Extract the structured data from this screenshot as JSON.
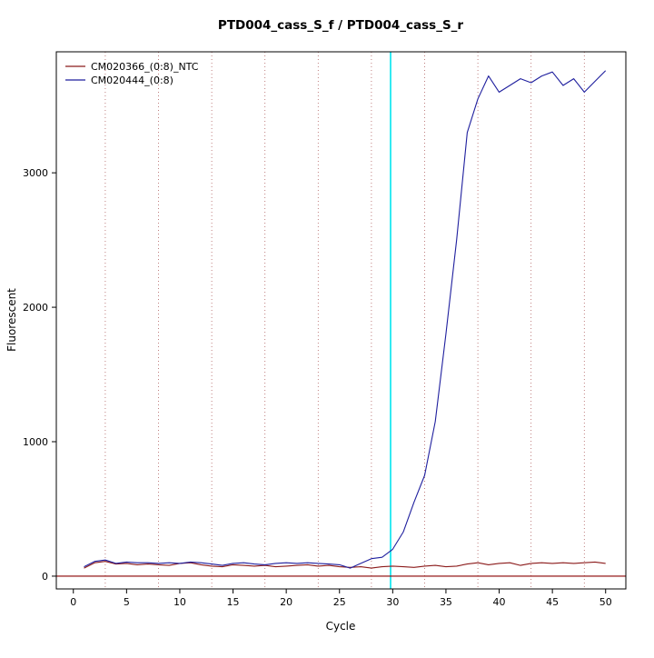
{
  "chart_data": {
    "type": "line",
    "title": "PTD004_cass_S_f / PTD004_cass_S_r",
    "xlabel": "Cycle",
    "ylabel": "Fluorescent",
    "x_ticks": [
      0,
      5,
      10,
      15,
      20,
      25,
      30,
      35,
      40,
      45,
      50
    ],
    "y_ticks": [
      0,
      1000,
      2000,
      3000
    ],
    "xlim": [
      -1.6,
      51.9
    ],
    "ylim": [
      -95,
      3900
    ],
    "grid_x_dotted": [
      3,
      8,
      13,
      18,
      23,
      28,
      33,
      38,
      43,
      48
    ],
    "threshold_line_y": 0,
    "ct_marker_x": 29.8,
    "x_start": 1,
    "series": [
      {
        "name": "CM020366_(0:8)_NTC",
        "color": "#8b1a1a",
        "values": [
          60,
          100,
          110,
          90,
          95,
          85,
          90,
          85,
          80,
          95,
          100,
          85,
          75,
          70,
          85,
          80,
          75,
          80,
          70,
          75,
          80,
          85,
          75,
          80,
          70,
          65,
          70,
          60,
          70,
          75,
          70,
          65,
          75,
          80,
          70,
          75,
          90,
          100,
          85,
          95,
          100,
          80,
          95,
          100,
          95,
          100,
          95,
          100,
          105,
          95
        ]
      },
      {
        "name": "CM020444_(0:8)",
        "color": "#1f1f9e",
        "values": [
          70,
          110,
          120,
          95,
          105,
          100,
          100,
          95,
          100,
          95,
          105,
          100,
          90,
          80,
          95,
          100,
          90,
          85,
          95,
          100,
          95,
          100,
          95,
          90,
          85,
          60,
          95,
          130,
          140,
          200,
          330,
          550,
          750,
          1150,
          1800,
          2500,
          3300,
          3550,
          3720,
          3600,
          3650,
          3700,
          3670,
          3720,
          3750,
          3650,
          3700,
          3600,
          3680,
          3760
        ]
      }
    ],
    "colors": {
      "ct_line": "#00e5ee",
      "threshold": "#8b0000",
      "grid": "#b06060",
      "box": "#000000"
    }
  },
  "legend": {
    "items": [
      {
        "label": "CM020366_(0:8)_NTC",
        "color": "#8b1a1a"
      },
      {
        "label": "CM020444_(0:8)",
        "color": "#1f1f9e"
      }
    ]
  }
}
